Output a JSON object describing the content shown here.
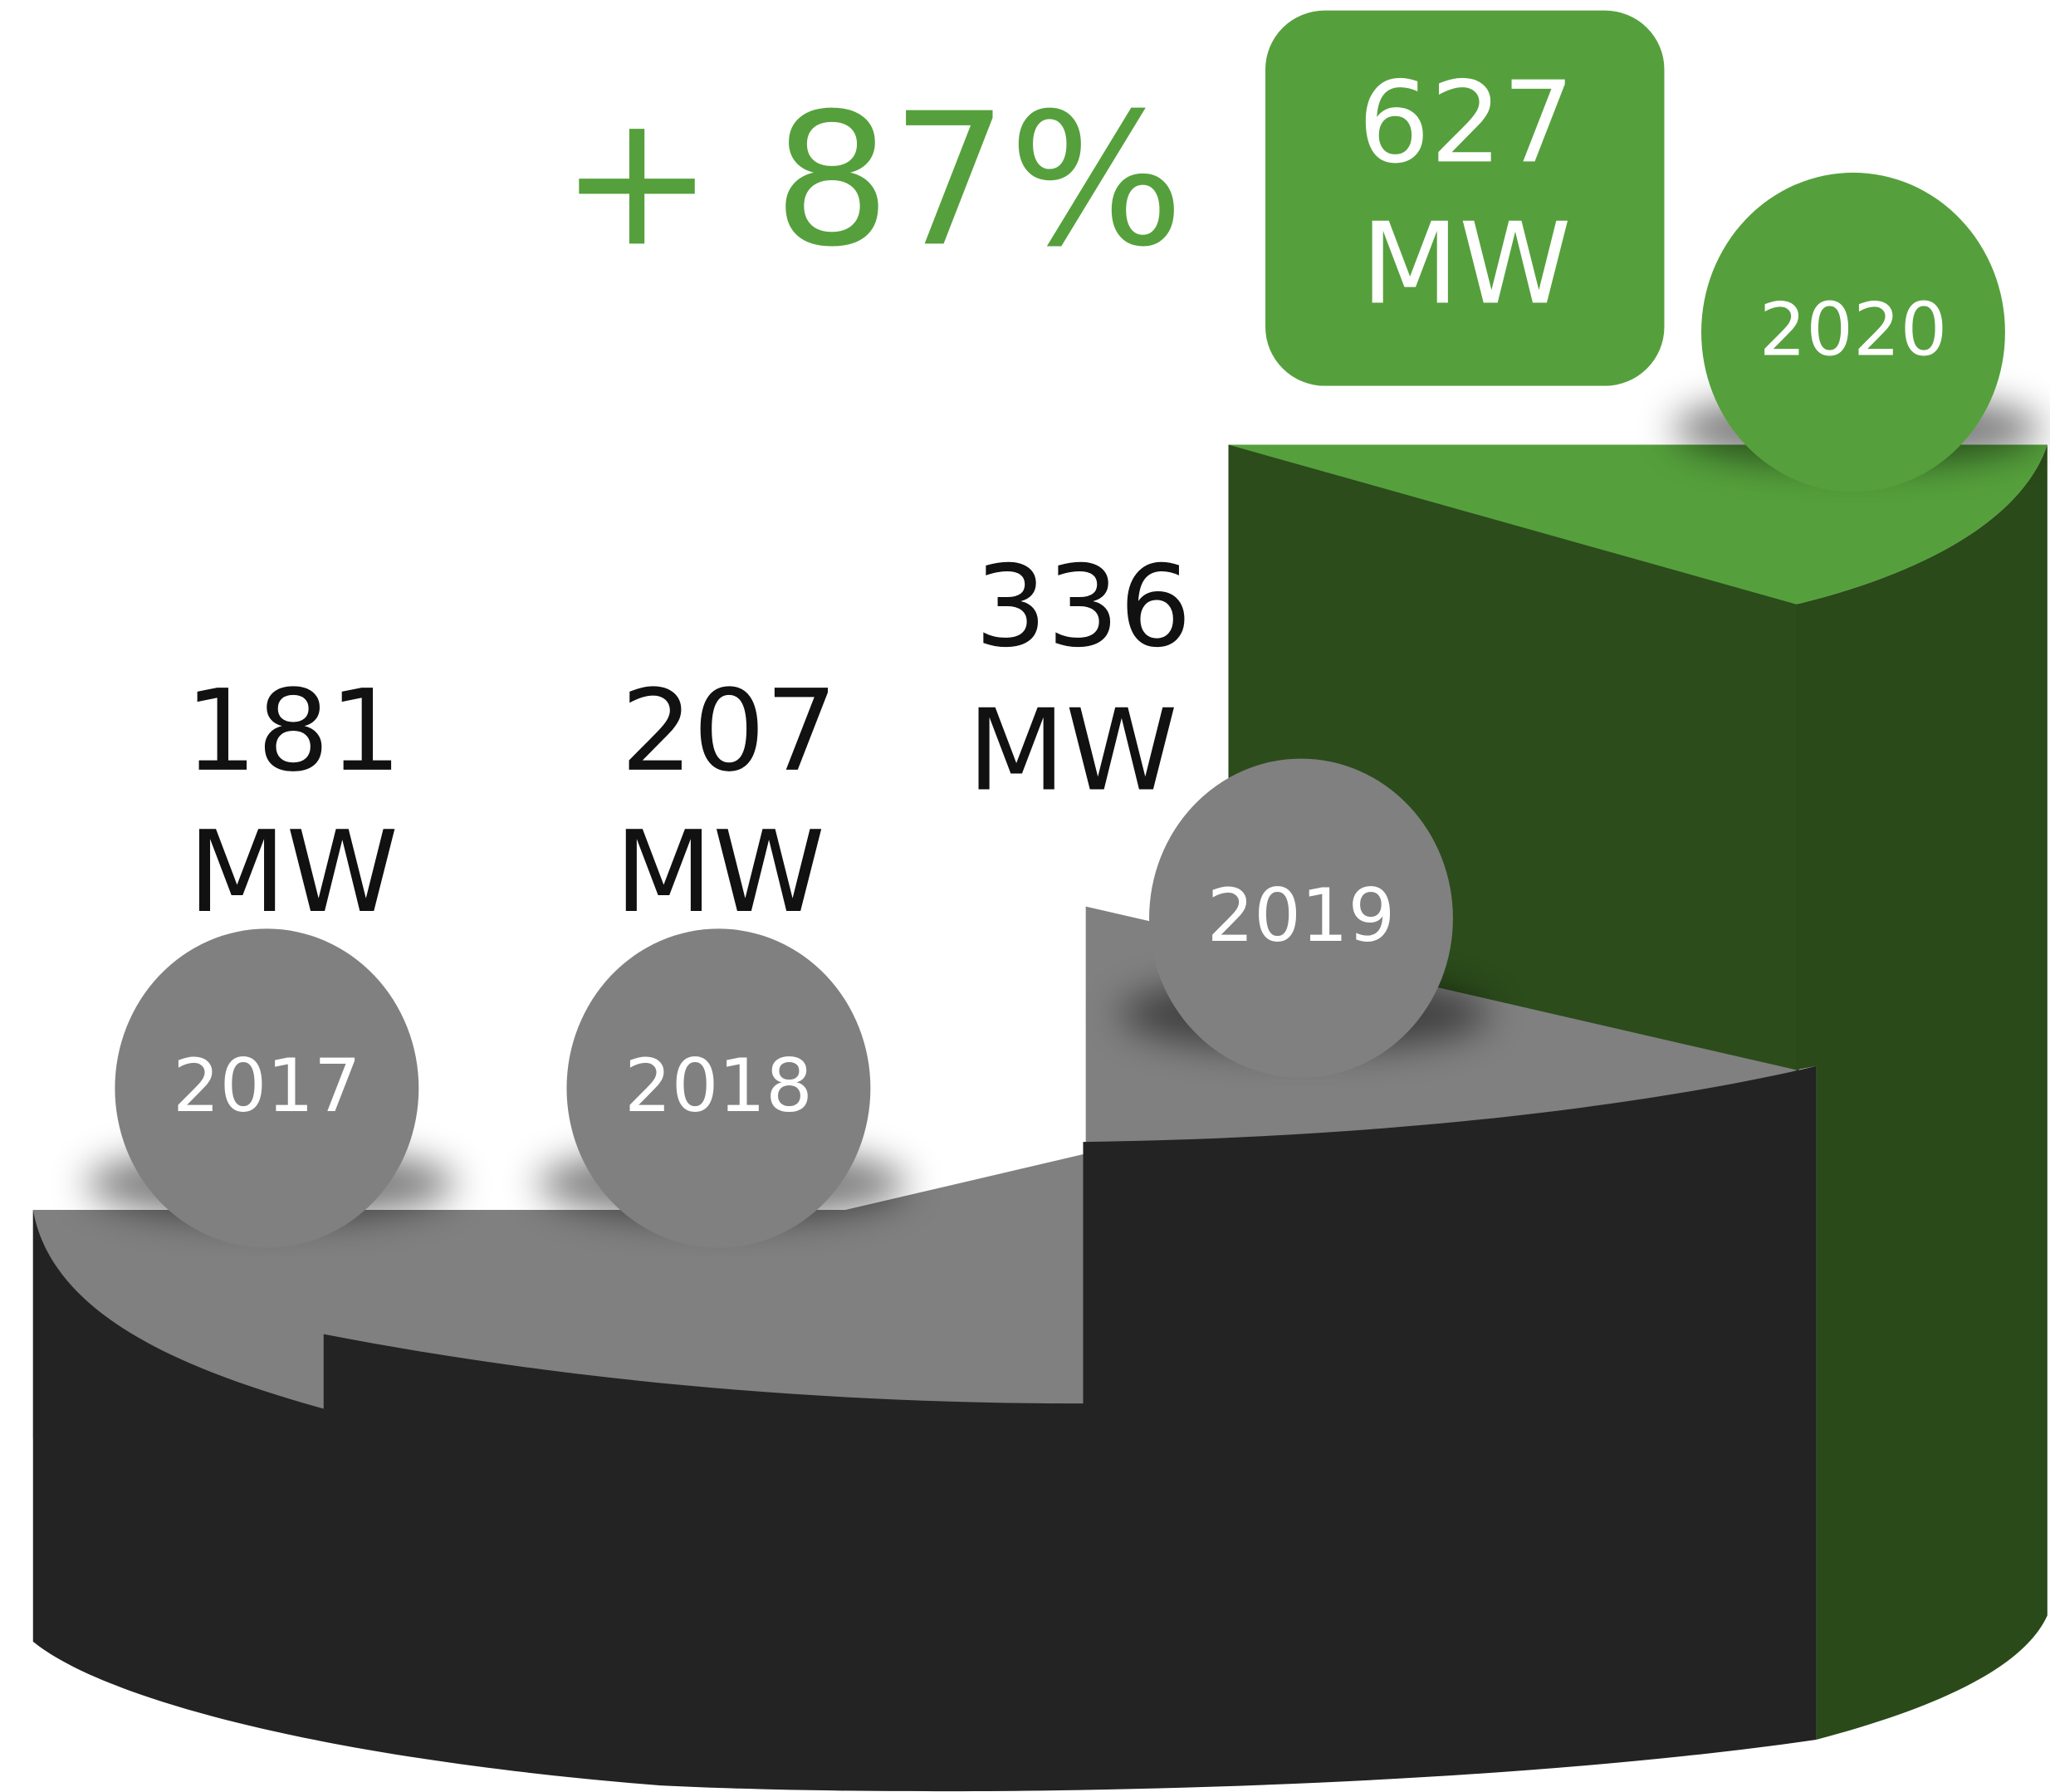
{
  "headline": "+ 87%",
  "steps": [
    {
      "value": 181,
      "unit": "MW",
      "year": "2017"
    },
    {
      "value": 207,
      "unit": "MW",
      "year": "2018"
    },
    {
      "value": 336,
      "unit": "MW",
      "year": "2019"
    },
    {
      "value": 627,
      "unit": "MW",
      "year": "2020"
    }
  ]
}
